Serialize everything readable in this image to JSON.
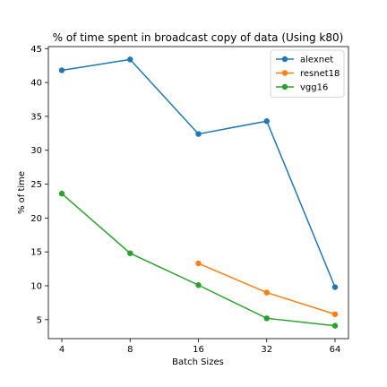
{
  "chart_data": {
    "type": "line",
    "title": "% of time spent in broadcast copy of data (Using k80)",
    "xlabel": "Batch Sizes",
    "ylabel": "% of time",
    "categories": [
      "4",
      "8",
      "16",
      "32",
      "64"
    ],
    "yticks": [
      5,
      10,
      15,
      20,
      25,
      30,
      35,
      40,
      45
    ],
    "ylim": [
      2.2,
      45.3
    ],
    "grid": false,
    "legend_position": "top-right",
    "series": [
      {
        "name": "alexnet",
        "color": "#1f77b4",
        "values": [
          41.8,
          43.4,
          32.4,
          34.3,
          9.8
        ]
      },
      {
        "name": "resnet18",
        "color": "#ff7f0e",
        "values": [
          null,
          null,
          13.3,
          9.0,
          5.8
        ]
      },
      {
        "name": "vgg16",
        "color": "#2ca02c",
        "values": [
          23.6,
          14.8,
          10.1,
          5.2,
          4.1
        ]
      }
    ]
  }
}
